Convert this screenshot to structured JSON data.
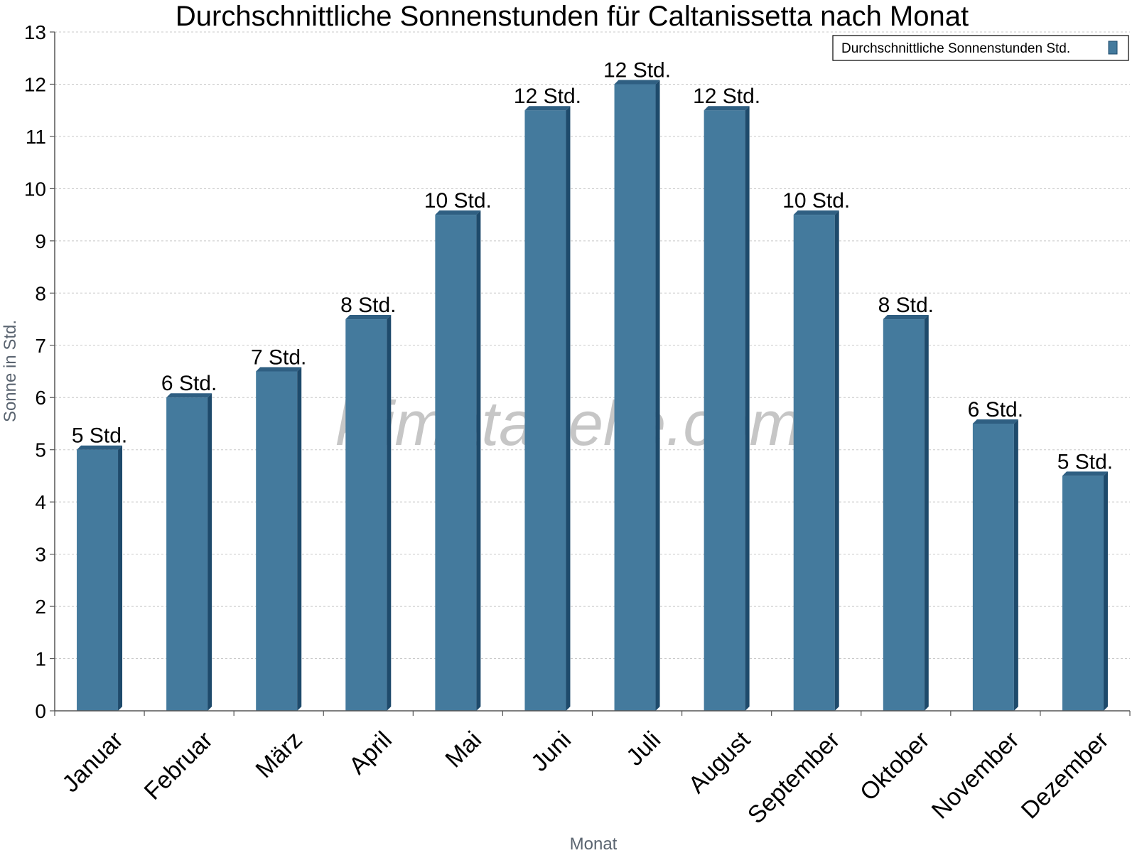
{
  "chart_data": {
    "type": "bar",
    "title": "Durchschnittliche Sonnenstunden für Caltanissetta nach Monat",
    "xlabel": "Monat",
    "ylabel": "Sonne in Std.",
    "ylim": [
      0,
      13
    ],
    "yticks": [
      "0",
      "1",
      "2",
      "3",
      "4",
      "5",
      "6",
      "7",
      "8",
      "9",
      "10",
      "11",
      "12",
      "13"
    ],
    "categories": [
      "Januar",
      "Februar",
      "März",
      "April",
      "Mai",
      "Juni",
      "Juli",
      "August",
      "September",
      "Oktober",
      "November",
      "Dezember"
    ],
    "series": [
      {
        "name": "Durchschnittliche Sonnenstunden Std.",
        "values": [
          5,
          6,
          6.5,
          7.5,
          9.5,
          11.5,
          12,
          11.5,
          9.5,
          7.5,
          5.5,
          4.5
        ],
        "labels": [
          "5 Std.",
          "6 Std.",
          "7 Std.",
          "8 Std.",
          "10 Std.",
          "12 Std.",
          "12 Std.",
          "12 Std.",
          "10 Std.",
          "8 Std.",
          "6 Std.",
          "5 Std."
        ]
      }
    ],
    "grid": true,
    "legend_position": "top-right",
    "watermark": "klimatabelle.com",
    "colors": {
      "bar": "#447a9d",
      "bar_side": "#1e4a6b",
      "bar_top": "#2f5f82",
      "grid": "#c8c8c8",
      "axis": "#555555",
      "axis_label": "#5a6470"
    }
  }
}
